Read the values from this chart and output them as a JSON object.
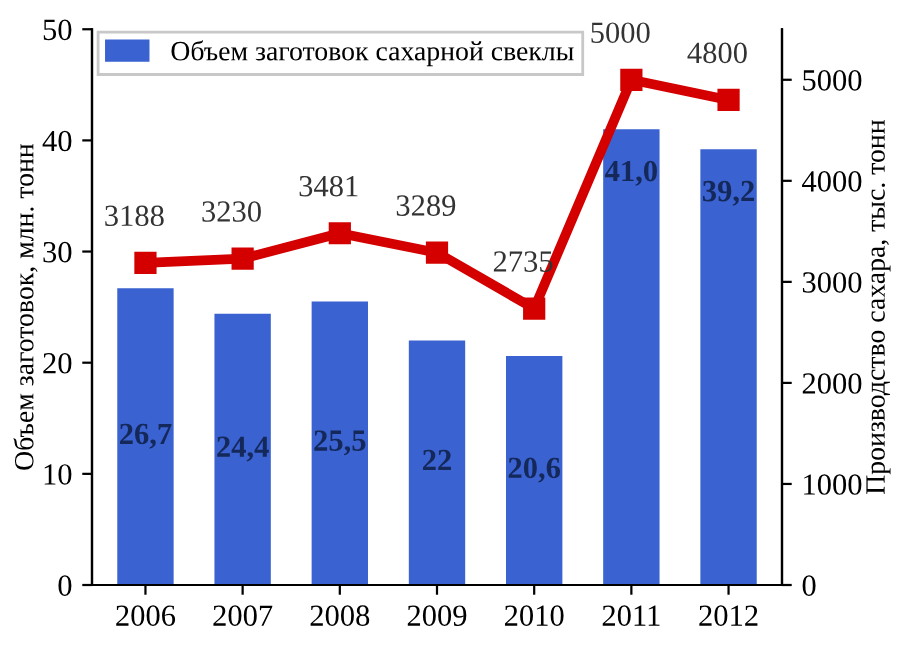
{
  "chart_data": {
    "type": "bar",
    "categories": [
      "2006",
      "2007",
      "2008",
      "2009",
      "2010",
      "2011",
      "2012"
    ],
    "ylabel": "Объем заготовок, млн. тонн",
    "y2label": "Производство сахара, тыс. тонн",
    "series": [
      {
        "name": "Объем заготовок сахарной свеклы",
        "color": "#3a62d0",
        "values": [
          26.7,
          24.4,
          25.5,
          22,
          20.6,
          41.0,
          39.2
        ],
        "value_labels": [
          "26,7",
          "24,4",
          "25,5",
          "22",
          "20,6",
          "41,0",
          "39,2"
        ]
      },
      {
        "type": "line",
        "axis": "y2",
        "color": "#d40000",
        "marker": "square",
        "values": [
          3188,
          3230,
          3481,
          3289,
          2735,
          5000,
          4800
        ],
        "value_labels": [
          "3188",
          "3230",
          "3481",
          "3289",
          "2735",
          "5000",
          "4800"
        ]
      }
    ],
    "ylim": [
      0,
      50
    ],
    "yticks": [
      0,
      10,
      20,
      30,
      40,
      50
    ],
    "y2lim": [
      0,
      5500
    ],
    "y2ticks": [
      0,
      1000,
      2000,
      3000,
      4000,
      5000
    ],
    "legend": "top",
    "grid": false
  }
}
